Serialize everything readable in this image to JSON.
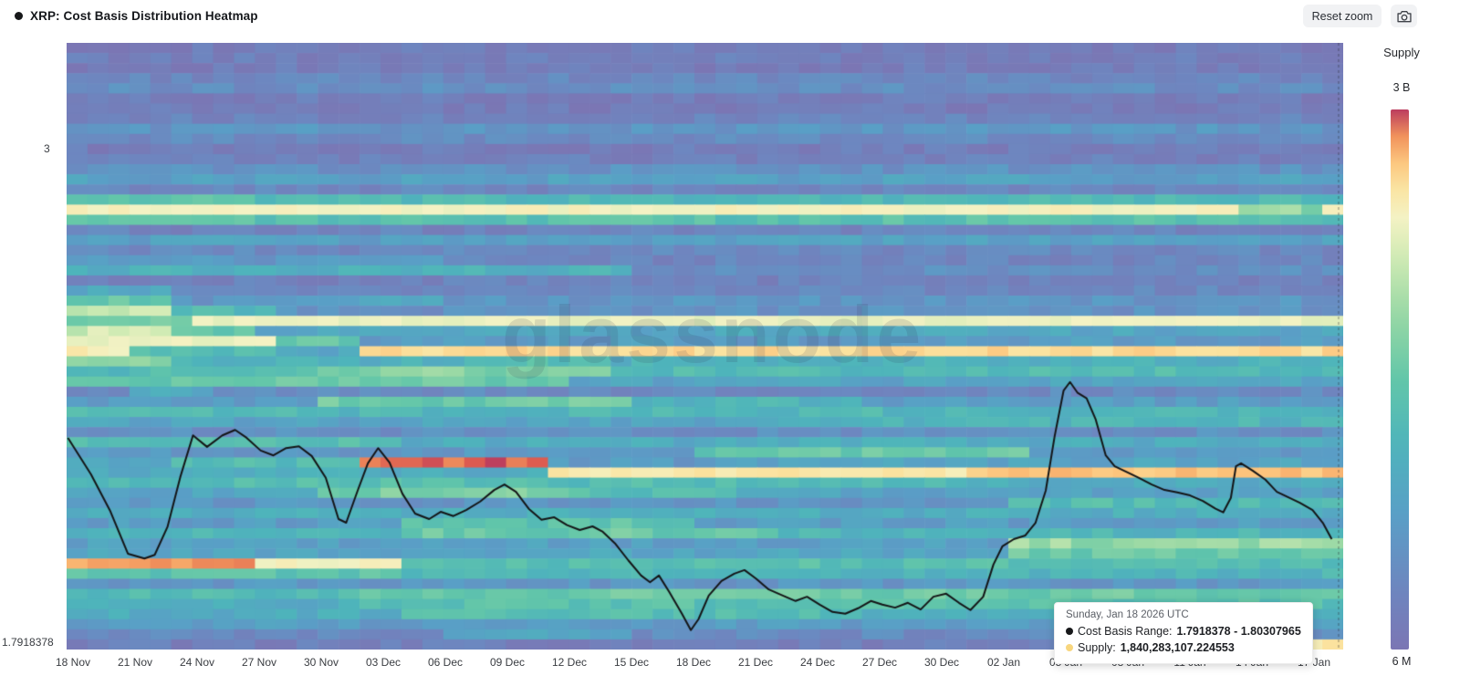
{
  "header": {
    "title": "XRP: Cost Basis Distribution Heatmap",
    "reset_zoom_label": "Reset zoom"
  },
  "legend": {
    "title": "Supply",
    "max_label": "3 B",
    "min_label": "6 M"
  },
  "axes": {
    "y_top_label": "3",
    "y_bottom_label": "1.7918378"
  },
  "watermark": "glassnode",
  "tooltip": {
    "date": "Sunday, Jan 18 2026 UTC",
    "rows": [
      {
        "dot": "#17181a",
        "label": "Cost Basis Range:",
        "value": "1.7918378 - 1.80307965"
      },
      {
        "dot": "#f8d67e",
        "label": "Supply:",
        "value": "1,840,283,107.224553"
      }
    ]
  },
  "chart_data": {
    "type": "heatmap",
    "title": "XRP: Cost Basis Distribution Heatmap",
    "y_min": 1.7918378,
    "y_max": 3.26,
    "y_ticks": [
      {
        "value": 3,
        "label": "3"
      },
      {
        "value": 1.7918378,
        "label": "1.7918378"
      }
    ],
    "x_ticks": [
      "18 Nov",
      "21 Nov",
      "24 Nov",
      "27 Nov",
      "30 Nov",
      "03 Dec",
      "06 Dec",
      "09 Dec",
      "12 Dec",
      "15 Dec",
      "18 Dec",
      "21 Dec",
      "24 Dec",
      "27 Dec",
      "30 Dec",
      "02 Jan",
      "05 Jan",
      "08 Jan",
      "11 Jan",
      "14 Jan",
      "17 Jan"
    ],
    "legend_title": "Supply",
    "legend_max": "3 B",
    "legend_min": "6 M",
    "n_cols": 61,
    "marker_x": 0.9964,
    "colormap": [
      [
        0.0,
        "#7b76b4"
      ],
      [
        0.12,
        "#6d87c0"
      ],
      [
        0.25,
        "#599fc6"
      ],
      [
        0.38,
        "#4eb4bb"
      ],
      [
        0.5,
        "#62c6a9"
      ],
      [
        0.62,
        "#98d8a4"
      ],
      [
        0.72,
        "#cdeab3"
      ],
      [
        0.8,
        "#f4f2c4"
      ],
      [
        0.86,
        "#fbe29e"
      ],
      [
        0.91,
        "#fcc179"
      ],
      [
        0.95,
        "#f1935c"
      ],
      [
        0.98,
        "#dc5a50"
      ],
      [
        1.0,
        "#bc3d5e"
      ]
    ],
    "rows": [
      [
        0.05
      ],
      [
        0.07
      ],
      [
        0.05
      ],
      [
        0.12
      ],
      [
        0.16
      ],
      [
        0.06
      ],
      [
        0.05
      ],
      [
        0.1
      ],
      [
        0.2
      ],
      [
        0.14
      ],
      [
        0.06
      ],
      [
        0.08
      ],
      [
        0.18
      ],
      [
        0.26
      ],
      [
        0.12
      ],
      [
        0.4,
        [
          0,
          0.15,
          0.48
        ]
      ],
      [
        0.8,
        [
          0.92,
          0.985,
          0.6
        ]
      ],
      [
        0.46,
        [
          0,
          0.1,
          0.52
        ]
      ],
      [
        0.1
      ],
      [
        0.26
      ],
      [
        0.13
      ],
      [
        0.11,
        [
          0,
          0.3,
          0.22
        ]
      ],
      [
        0.16,
        [
          0,
          0.45,
          0.36
        ]
      ],
      [
        0.09
      ],
      [
        0.12,
        [
          0,
          0.09,
          0.3
        ]
      ],
      [
        0.2,
        [
          0,
          0.09,
          0.5
        ],
        [
          0.2,
          0.3,
          0.3
        ]
      ],
      [
        0.18,
        [
          0,
          0.09,
          0.68
        ],
        [
          0.09,
          0.16,
          0.42
        ]
      ],
      [
        0.22,
        [
          0,
          0.094,
          0.58
        ],
        [
          0.094,
          1,
          0.78
        ]
      ],
      [
        0.3,
        [
          0,
          0.09,
          0.72
        ],
        [
          0.09,
          0.155,
          0.48
        ]
      ],
      [
        0.24,
        [
          0,
          0.16,
          0.78
        ],
        [
          0.16,
          0.23,
          0.52
        ]
      ],
      [
        0.3,
        [
          0,
          0.055,
          0.82
        ],
        [
          0.055,
          0.16,
          0.45
        ],
        [
          0.23,
          1,
          0.87
        ]
      ],
      [
        0.36,
        [
          0,
          0.09,
          0.58
        ],
        [
          0.35,
          0.42,
          0.45
        ]
      ],
      [
        0.42,
        [
          0.2,
          0.42,
          0.58
        ]
      ],
      [
        0.38,
        [
          0,
          0.39,
          0.52
        ],
        [
          0.39,
          1,
          0.28
        ]
      ],
      [
        0.14,
        [
          0.05,
          0.12,
          0.32
        ]
      ],
      [
        0.24,
        [
          0.19,
          0.45,
          0.52
        ],
        [
          0.45,
          0.62,
          0.38
        ]
      ],
      [
        0.4
      ],
      [
        0.28,
        [
          0.55,
          1,
          0.38
        ]
      ],
      [
        0.17
      ],
      [
        0.33,
        [
          0,
          0.27,
          0.44
        ]
      ],
      [
        0.22,
        [
          0.49,
          0.76,
          0.5
        ]
      ],
      [
        0.28,
        [
          0.08,
          0.227,
          0.42
        ],
        [
          0.227,
          0.37,
          0.98
        ],
        [
          0.37,
          0.52,
          0.22
        ]
      ],
      [
        0.33,
        [
          0.37,
          0.71,
          0.84
        ],
        [
          0.71,
          1,
          0.9
        ]
      ],
      [
        0.44,
        [
          0.71,
          1,
          0.33
        ]
      ],
      [
        0.28,
        [
          0.19,
          0.41,
          0.56
        ],
        [
          0.41,
          0.52,
          0.42
        ]
      ],
      [
        0.2,
        [
          0.74,
          1,
          0.44
        ]
      ],
      [
        0.34
      ],
      [
        0.24,
        [
          0.27,
          0.49,
          0.48
        ]
      ],
      [
        0.38,
        [
          0.27,
          0.55,
          0.52
        ]
      ],
      [
        0.26,
        [
          0.73,
          1,
          0.62
        ]
      ],
      [
        0.29,
        [
          0.73,
          1,
          0.52
        ]
      ],
      [
        0.24,
        [
          0,
          0.14,
          0.94
        ],
        [
          0.14,
          0.27,
          0.8
        ],
        [
          0.27,
          1,
          0.45
        ]
      ],
      [
        0.38,
        [
          0,
          0.27,
          0.48
        ]
      ],
      [
        0.21
      ],
      [
        0.42,
        [
          0.23,
          1,
          0.52
        ]
      ],
      [
        0.46,
        [
          0,
          0.23,
          0.33
        ]
      ],
      [
        0.33,
        [
          0.27,
          0.63,
          0.44
        ]
      ],
      [
        0.24
      ],
      [
        0.14,
        [
          0.3,
          0.45,
          0.28
        ]
      ],
      [
        0.07,
        [
          0.955,
          1,
          0.84
        ]
      ]
    ],
    "price_line": [
      [
        0.001,
        0.651
      ],
      [
        0.019,
        0.711
      ],
      [
        0.034,
        0.771
      ],
      [
        0.048,
        0.842
      ],
      [
        0.061,
        0.85
      ],
      [
        0.069,
        0.844
      ],
      [
        0.079,
        0.798
      ],
      [
        0.089,
        0.716
      ],
      [
        0.099,
        0.647
      ],
      [
        0.11,
        0.666
      ],
      [
        0.122,
        0.647
      ],
      [
        0.132,
        0.638
      ],
      [
        0.141,
        0.651
      ],
      [
        0.152,
        0.672
      ],
      [
        0.162,
        0.68
      ],
      [
        0.172,
        0.668
      ],
      [
        0.182,
        0.665
      ],
      [
        0.192,
        0.681
      ],
      [
        0.203,
        0.717
      ],
      [
        0.213,
        0.785
      ],
      [
        0.219,
        0.791
      ],
      [
        0.228,
        0.738
      ],
      [
        0.236,
        0.693
      ],
      [
        0.244,
        0.668
      ],
      [
        0.253,
        0.692
      ],
      [
        0.263,
        0.743
      ],
      [
        0.273,
        0.776
      ],
      [
        0.284,
        0.785
      ],
      [
        0.293,
        0.773
      ],
      [
        0.303,
        0.78
      ],
      [
        0.313,
        0.77
      ],
      [
        0.324,
        0.756
      ],
      [
        0.335,
        0.737
      ],
      [
        0.343,
        0.728
      ],
      [
        0.352,
        0.74
      ],
      [
        0.362,
        0.768
      ],
      [
        0.372,
        0.786
      ],
      [
        0.382,
        0.782
      ],
      [
        0.392,
        0.795
      ],
      [
        0.402,
        0.803
      ],
      [
        0.412,
        0.797
      ],
      [
        0.42,
        0.806
      ],
      [
        0.43,
        0.826
      ],
      [
        0.44,
        0.853
      ],
      [
        0.45,
        0.878
      ],
      [
        0.457,
        0.889
      ],
      [
        0.464,
        0.878
      ],
      [
        0.472,
        0.905
      ],
      [
        0.482,
        0.941
      ],
      [
        0.489,
        0.968
      ],
      [
        0.495,
        0.95
      ],
      [
        0.503,
        0.911
      ],
      [
        0.513,
        0.887
      ],
      [
        0.523,
        0.875
      ],
      [
        0.531,
        0.869
      ],
      [
        0.54,
        0.883
      ],
      [
        0.55,
        0.901
      ],
      [
        0.561,
        0.911
      ],
      [
        0.571,
        0.92
      ],
      [
        0.58,
        0.913
      ],
      [
        0.59,
        0.926
      ],
      [
        0.6,
        0.938
      ],
      [
        0.61,
        0.941
      ],
      [
        0.62,
        0.932
      ],
      [
        0.63,
        0.92
      ],
      [
        0.639,
        0.926
      ],
      [
        0.649,
        0.931
      ],
      [
        0.659,
        0.923
      ],
      [
        0.669,
        0.934
      ],
      [
        0.679,
        0.913
      ],
      [
        0.689,
        0.908
      ],
      [
        0.699,
        0.923
      ],
      [
        0.708,
        0.935
      ],
      [
        0.718,
        0.913
      ],
      [
        0.726,
        0.86
      ],
      [
        0.733,
        0.83
      ],
      [
        0.742,
        0.818
      ],
      [
        0.751,
        0.812
      ],
      [
        0.759,
        0.791
      ],
      [
        0.767,
        0.738
      ],
      [
        0.774,
        0.648
      ],
      [
        0.781,
        0.573
      ],
      [
        0.786,
        0.559
      ],
      [
        0.792,
        0.577
      ],
      [
        0.799,
        0.586
      ],
      [
        0.806,
        0.62
      ],
      [
        0.814,
        0.68
      ],
      [
        0.821,
        0.698
      ],
      [
        0.83,
        0.707
      ],
      [
        0.84,
        0.717
      ],
      [
        0.85,
        0.728
      ],
      [
        0.86,
        0.737
      ],
      [
        0.87,
        0.741
      ],
      [
        0.88,
        0.746
      ],
      [
        0.89,
        0.755
      ],
      [
        0.9,
        0.768
      ],
      [
        0.906,
        0.774
      ],
      [
        0.912,
        0.75
      ],
      [
        0.916,
        0.698
      ],
      [
        0.92,
        0.693
      ],
      [
        0.929,
        0.705
      ],
      [
        0.939,
        0.72
      ],
      [
        0.948,
        0.74
      ],
      [
        0.957,
        0.749
      ],
      [
        0.966,
        0.758
      ],
      [
        0.976,
        0.77
      ],
      [
        0.984,
        0.791
      ],
      [
        0.991,
        0.818
      ]
    ]
  }
}
